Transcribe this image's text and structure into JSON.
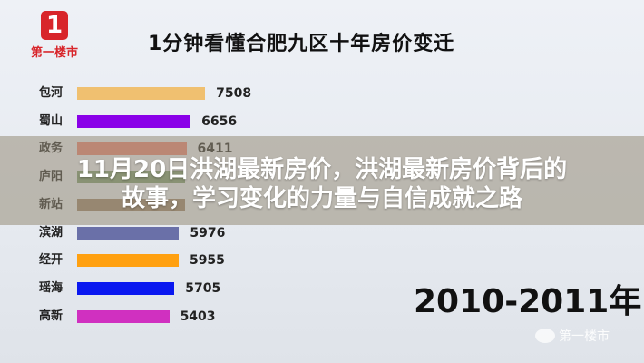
{
  "logo": {
    "text": "1",
    "name": "第一楼市"
  },
  "overlay": {
    "line1": "11月20日洪湖最新房价，洪湖最新房价背后的",
    "line2": "故事，学习变化的力量与自信成就之路"
  },
  "watermark": {
    "icon": "wechat-icon",
    "text": "第一楼市"
  },
  "chart_data": {
    "type": "bar",
    "orientation": "horizontal",
    "title": "1分钟看懂合肥九区十年房价变迁",
    "period": "2010-2011年",
    "categories": [
      "包河",
      "蜀山",
      "政务",
      "庐阳",
      "新站",
      "滨湖",
      "经开",
      "瑶海",
      "高新"
    ],
    "values": [
      7508,
      6656,
      6411,
      6355,
      6339,
      5976,
      5955,
      5705,
      5403
    ],
    "labels": [
      "7508",
      "6656",
      "6411",
      "",
      "",
      "5976",
      "5955",
      "5705",
      "5403"
    ],
    "colors": [
      "#f0c070",
      "#8a00e8",
      "#e88070",
      "#7a9a70",
      "#9a8068",
      "#6a70a8",
      "#ffa010",
      "#0a18f0",
      "#d030c0"
    ],
    "grid": false
  }
}
